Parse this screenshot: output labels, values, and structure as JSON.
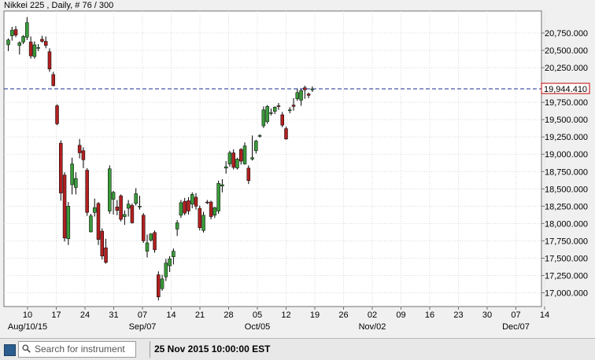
{
  "header": {
    "title": "Nikkei 225 , Daily, # 76 / 300"
  },
  "price_tag": {
    "value": "19,944.410",
    "color": "#c00000"
  },
  "colors": {
    "up": "#3a9a3a",
    "down": "#b02020",
    "grid": "#d8d8d8",
    "dashed": "#1a2d8a"
  },
  "bottom_bar": {
    "search_placeholder": "Search for instrument",
    "datetime": "25 Nov 2015 10:00:00 EST",
    "icons": [
      "square-icon",
      "search-icon"
    ]
  },
  "chart_data": {
    "type": "candlestick",
    "title": "Nikkei 225 , Daily, # 76 / 300",
    "ylim": [
      16750,
      21000
    ],
    "y_ticks": [
      "20,750.000",
      "20,500.000",
      "20,250.000",
      "19,750.000",
      "19,500.000",
      "19,250.000",
      "19,000.000",
      "18,750.000",
      "18,500.000",
      "18,250.000",
      "18,000.000",
      "17,750.000",
      "17,500.000",
      "17,250.000",
      "17,000.000"
    ],
    "y_tick_values": [
      20750,
      20500,
      20250,
      19750,
      19500,
      19250,
      19000,
      18750,
      18500,
      18250,
      18000,
      17750,
      17500,
      17250,
      17000
    ],
    "x_ticks": [
      "10",
      "17",
      "24",
      "31",
      "07",
      "14",
      "21",
      "28",
      "05",
      "12",
      "19",
      "26",
      "02",
      "09",
      "16",
      "23",
      "30",
      "07",
      "14"
    ],
    "month_labels": [
      "Aug/10/15",
      "Sep/07",
      "Oct/05",
      "Nov/02",
      "Dec/07"
    ],
    "month_label_ticks": [
      0,
      4,
      8,
      12,
      17
    ],
    "grid": true,
    "current_price": 19944.41,
    "candles": [
      {
        "d": "Aug 07",
        "o": 20580,
        "h": 20670,
        "l": 20490,
        "c": 20650
      },
      {
        "d": "Aug 10",
        "o": 20710,
        "h": 20840,
        "l": 20640,
        "c": 20790
      },
      {
        "d": "Aug 11",
        "o": 20800,
        "h": 20850,
        "l": 20690,
        "c": 20720
      },
      {
        "d": "Aug 12",
        "o": 20570,
        "h": 20630,
        "l": 20440,
        "c": 20610
      },
      {
        "d": "Aug 13",
        "o": 20620,
        "h": 20720,
        "l": 20590,
        "c": 20700
      },
      {
        "d": "Aug 14",
        "o": 20690,
        "h": 20980,
        "l": 20650,
        "c": 20900
      },
      {
        "d": "Aug 17",
        "o": 20620,
        "h": 20700,
        "l": 20380,
        "c": 20420
      },
      {
        "d": "Aug 18",
        "o": 20410,
        "h": 20630,
        "l": 20380,
        "c": 20580
      },
      {
        "d": "Aug 19",
        "o": 20540,
        "h": 20590,
        "l": 20490,
        "c": 20540
      },
      {
        "d": "Aug 20",
        "o": 20660,
        "h": 20710,
        "l": 20610,
        "c": 20630
      },
      {
        "d": "Aug 21",
        "o": 20630,
        "h": 20700,
        "l": 20530,
        "c": 20570
      },
      {
        "d": "Aug 24",
        "o": 20480,
        "h": 20530,
        "l": 20190,
        "c": 20230
      },
      {
        "d": "Aug 25",
        "o": 20150,
        "h": 20190,
        "l": 19980,
        "c": 19990
      },
      {
        "d": "Aug 26",
        "o": 19700,
        "h": 19720,
        "l": 19420,
        "c": 19440
      },
      {
        "d": "Aug 27",
        "o": 19160,
        "h": 19200,
        "l": 18330,
        "c": 18440
      },
      {
        "d": "Aug 28",
        "o": 18700,
        "h": 18740,
        "l": 17740,
        "c": 17790
      },
      {
        "d": "Aug 31",
        "o": 17780,
        "h": 18310,
        "l": 17690,
        "c": 18250
      },
      {
        "d": "Sep 01",
        "o": 18560,
        "h": 18950,
        "l": 18420,
        "c": 18860
      },
      {
        "d": "Sep 02",
        "o": 18520,
        "h": 18740,
        "l": 18420,
        "c": 18650
      },
      {
        "d": "Sep 03",
        "o": 19130,
        "h": 19220,
        "l": 18940,
        "c": 19020
      },
      {
        "d": "Sep 04",
        "o": 19050,
        "h": 19100,
        "l": 18800,
        "c": 18920
      },
      {
        "d": "Sep 07",
        "o": 18770,
        "h": 18800,
        "l": 18110,
        "c": 18160
      },
      {
        "d": "Sep 08",
        "o": 17880,
        "h": 18140,
        "l": 17870,
        "c": 18110
      },
      {
        "d": "Sep 09",
        "o": 18160,
        "h": 18360,
        "l": 18100,
        "c": 18230
      },
      {
        "d": "Sep 10",
        "o": 18290,
        "h": 18310,
        "l": 17690,
        "c": 17770
      },
      {
        "d": "Sep 11",
        "o": 17890,
        "h": 17930,
        "l": 17480,
        "c": 17530
      },
      {
        "d": "Sep 14",
        "o": 17650,
        "h": 17780,
        "l": 17420,
        "c": 17440
      },
      {
        "d": "Sep 15",
        "o": 18180,
        "h": 18840,
        "l": 18140,
        "c": 18790
      },
      {
        "d": "Sep 16",
        "o": 18350,
        "h": 18470,
        "l": 18130,
        "c": 18450
      },
      {
        "d": "Sep 17",
        "o": 18240,
        "h": 18340,
        "l": 18120,
        "c": 18190
      },
      {
        "d": "Sep 18",
        "o": 18400,
        "h": 18420,
        "l": 18030,
        "c": 18060
      },
      {
        "d": "Sep 21",
        "o": 18100,
        "h": 18190,
        "l": 17980,
        "c": 18130
      },
      {
        "d": "Sep 22",
        "o": 18220,
        "h": 18340,
        "l": 18100,
        "c": 18280
      },
      {
        "d": "Sep 23",
        "o": 18260,
        "h": 18290,
        "l": 18000,
        "c": 18010
      },
      {
        "d": "Sep 24",
        "o": 18290,
        "h": 18510,
        "l": 18260,
        "c": 18430
      },
      {
        "d": "Sep 25",
        "o": 18240,
        "h": 18400,
        "l": 18200,
        "c": 18250
      },
      {
        "d": "Sep 28",
        "o": 18120,
        "h": 18150,
        "l": 17720,
        "c": 17750
      },
      {
        "d": "Sep 29",
        "o": 17600,
        "h": 17840,
        "l": 17510,
        "c": 17720
      },
      {
        "d": "Sep 30",
        "o": 17760,
        "h": 17860,
        "l": 17740,
        "c": 17850
      },
      {
        "d": "Oct 01",
        "o": 17870,
        "h": 17900,
        "l": 17580,
        "c": 17620
      },
      {
        "d": "Oct 02",
        "o": 17260,
        "h": 17310,
        "l": 16890,
        "c": 16940
      },
      {
        "d": "Oct 05",
        "o": 17060,
        "h": 17260,
        "l": 17030,
        "c": 17200
      },
      {
        "d": "Oct 06",
        "o": 17230,
        "h": 17490,
        "l": 17170,
        "c": 17430
      },
      {
        "d": "Oct 07",
        "o": 17390,
        "h": 17530,
        "l": 17300,
        "c": 17490
      },
      {
        "d": "Oct 08",
        "o": 17520,
        "h": 17640,
        "l": 17410,
        "c": 17600
      },
      {
        "d": "Oct 09",
        "o": 17920,
        "h": 18050,
        "l": 17820,
        "c": 18010
      },
      {
        "d": "Oct 12",
        "o": 18120,
        "h": 18340,
        "l": 18080,
        "c": 18300
      },
      {
        "d": "Oct 13",
        "o": 18320,
        "h": 18370,
        "l": 18120,
        "c": 18150
      },
      {
        "d": "Oct 14",
        "o": 18330,
        "h": 18380,
        "l": 18130,
        "c": 18180
      },
      {
        "d": "Oct 15",
        "o": 18280,
        "h": 18450,
        "l": 18220,
        "c": 18420
      },
      {
        "d": "Oct 16",
        "o": 18380,
        "h": 18440,
        "l": 18200,
        "c": 18250
      },
      {
        "d": "Oct 19",
        "o": 18220,
        "h": 18260,
        "l": 17900,
        "c": 17940
      },
      {
        "d": "Oct 20",
        "o": 17900,
        "h": 18170,
        "l": 17870,
        "c": 18120
      },
      {
        "d": "Oct 21",
        "o": 18310,
        "h": 18340,
        "l": 18280,
        "c": 18300
      },
      {
        "d": "Oct 22",
        "o": 18310,
        "h": 18330,
        "l": 18060,
        "c": 18100
      },
      {
        "d": "Oct 23",
        "o": 18120,
        "h": 18240,
        "l": 18080,
        "c": 18230
      },
      {
        "d": "Oct 26",
        "o": 18180,
        "h": 18620,
        "l": 18140,
        "c": 18580
      },
      {
        "d": "Oct 27",
        "o": 18540,
        "h": 18640,
        "l": 18450,
        "c": 18560
      },
      {
        "d": "Oct 28",
        "o": 18800,
        "h": 18900,
        "l": 18720,
        "c": 18820
      },
      {
        "d": "Oct 29",
        "o": 18860,
        "h": 19050,
        "l": 18820,
        "c": 19020
      },
      {
        "d": "Oct 30",
        "o": 19020,
        "h": 19070,
        "l": 18780,
        "c": 18810
      },
      {
        "d": "Nov 02",
        "o": 18800,
        "h": 18950,
        "l": 18780,
        "c": 18930
      },
      {
        "d": "Nov 03",
        "o": 19070,
        "h": 19090,
        "l": 18850,
        "c": 18900
      },
      {
        "d": "Nov 04",
        "o": 18860,
        "h": 19170,
        "l": 18850,
        "c": 19120
      },
      {
        "d": "Nov 05",
        "o": 18800,
        "h": 18840,
        "l": 18570,
        "c": 18620
      },
      {
        "d": "Nov 06",
        "o": 18930,
        "h": 19270,
        "l": 18910,
        "c": 18950
      },
      {
        "d": "Nov 09",
        "o": 19050,
        "h": 19210,
        "l": 19010,
        "c": 19190
      },
      {
        "d": "Nov 10",
        "o": 19260,
        "h": 19290,
        "l": 19240,
        "c": 19270
      },
      {
        "d": "Nov 11",
        "o": 19410,
        "h": 19690,
        "l": 19380,
        "c": 19640
      },
      {
        "d": "Nov 12",
        "o": 19470,
        "h": 19710,
        "l": 19440,
        "c": 19690
      },
      {
        "d": "Nov 13",
        "o": 19590,
        "h": 19660,
        "l": 19560,
        "c": 19600
      },
      {
        "d": "Nov 16",
        "o": 19620,
        "h": 19690,
        "l": 19580,
        "c": 19680
      },
      {
        "d": "Nov 17",
        "o": 19700,
        "h": 19740,
        "l": 19640,
        "c": 19690
      },
      {
        "d": "Nov 18",
        "o": 19570,
        "h": 19610,
        "l": 19390,
        "c": 19420
      },
      {
        "d": "Nov 19",
        "o": 19370,
        "h": 19400,
        "l": 19210,
        "c": 19220
      },
      {
        "d": "Nov 20",
        "o": 19630,
        "h": 19680,
        "l": 19590,
        "c": 19640
      },
      {
        "d": "Nov 23",
        "o": 19710,
        "h": 19810,
        "l": 19630,
        "c": 19690
      },
      {
        "d": "Nov 24",
        "o": 19800,
        "h": 19950,
        "l": 19770,
        "c": 19890
      },
      {
        "d": "Nov 25",
        "o": 19780,
        "h": 19940,
        "l": 19700,
        "c": 19920
      },
      {
        "d": "Nov 26",
        "o": 19960,
        "h": 19990,
        "l": 19800,
        "c": 19930
      },
      {
        "d": "Nov 27",
        "o": 19870,
        "h": 19890,
        "l": 19810,
        "c": 19850
      },
      {
        "d": "Nov 30",
        "o": 19930,
        "h": 19980,
        "l": 19900,
        "c": 19944.41
      }
    ]
  }
}
